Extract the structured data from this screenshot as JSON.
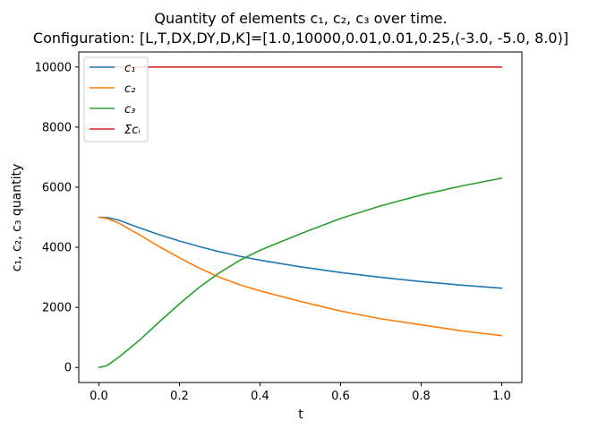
{
  "chart_data": {
    "type": "line",
    "title_line1": "Quantity of elements c₁, c₂, c₃ over time.",
    "title_line2": "Configuration: [L,T,DX,DY,D,K]=[1.0,10000,0.01,0.01,0.25,(-3.0, -5.0, 8.0)]",
    "xlabel": "t",
    "ylabel": "c₁, c₂, c₃ quantity",
    "xlim": [
      -0.05,
      1.05
    ],
    "ylim": [
      -500,
      10500
    ],
    "xticks": [
      0.0,
      0.2,
      0.4,
      0.6,
      0.8,
      1.0
    ],
    "xtick_labels": [
      "0.0",
      "0.2",
      "0.4",
      "0.6",
      "0.8",
      "1.0"
    ],
    "yticks": [
      0,
      2000,
      4000,
      6000,
      8000,
      10000
    ],
    "ytick_labels": [
      "0",
      "2000",
      "4000",
      "6000",
      "8000",
      "10000"
    ],
    "grid": false,
    "legend_position": "top-left",
    "x": [
      0.0,
      0.02,
      0.05,
      0.1,
      0.15,
      0.2,
      0.25,
      0.3,
      0.35,
      0.4,
      0.5,
      0.6,
      0.7,
      0.8,
      0.9,
      1.0
    ],
    "series": [
      {
        "name": "c₁",
        "color": "#1f77b4",
        "values": [
          5000,
          4990,
          4900,
          4650,
          4420,
          4210,
          4020,
          3850,
          3700,
          3570,
          3350,
          3160,
          3000,
          2860,
          2740,
          2640
        ]
      },
      {
        "name": "c₂",
        "color": "#ff7f0e",
        "values": [
          5000,
          4960,
          4800,
          4420,
          4020,
          3650,
          3300,
          3000,
          2750,
          2550,
          2200,
          1880,
          1620,
          1420,
          1220,
          1060
        ]
      },
      {
        "name": "c₃",
        "color": "#2ca02c",
        "values": [
          0,
          60,
          350,
          900,
          1520,
          2120,
          2680,
          3160,
          3570,
          3900,
          4450,
          4960,
          5380,
          5740,
          6040,
          6300
        ]
      },
      {
        "name": "Σcᵢ",
        "color": "#d62728",
        "values": [
          10000,
          10000,
          10000,
          10000,
          10000,
          10000,
          10000,
          10000,
          10000,
          10000,
          10000,
          10000,
          10000,
          10000,
          10000,
          10000
        ]
      }
    ]
  }
}
